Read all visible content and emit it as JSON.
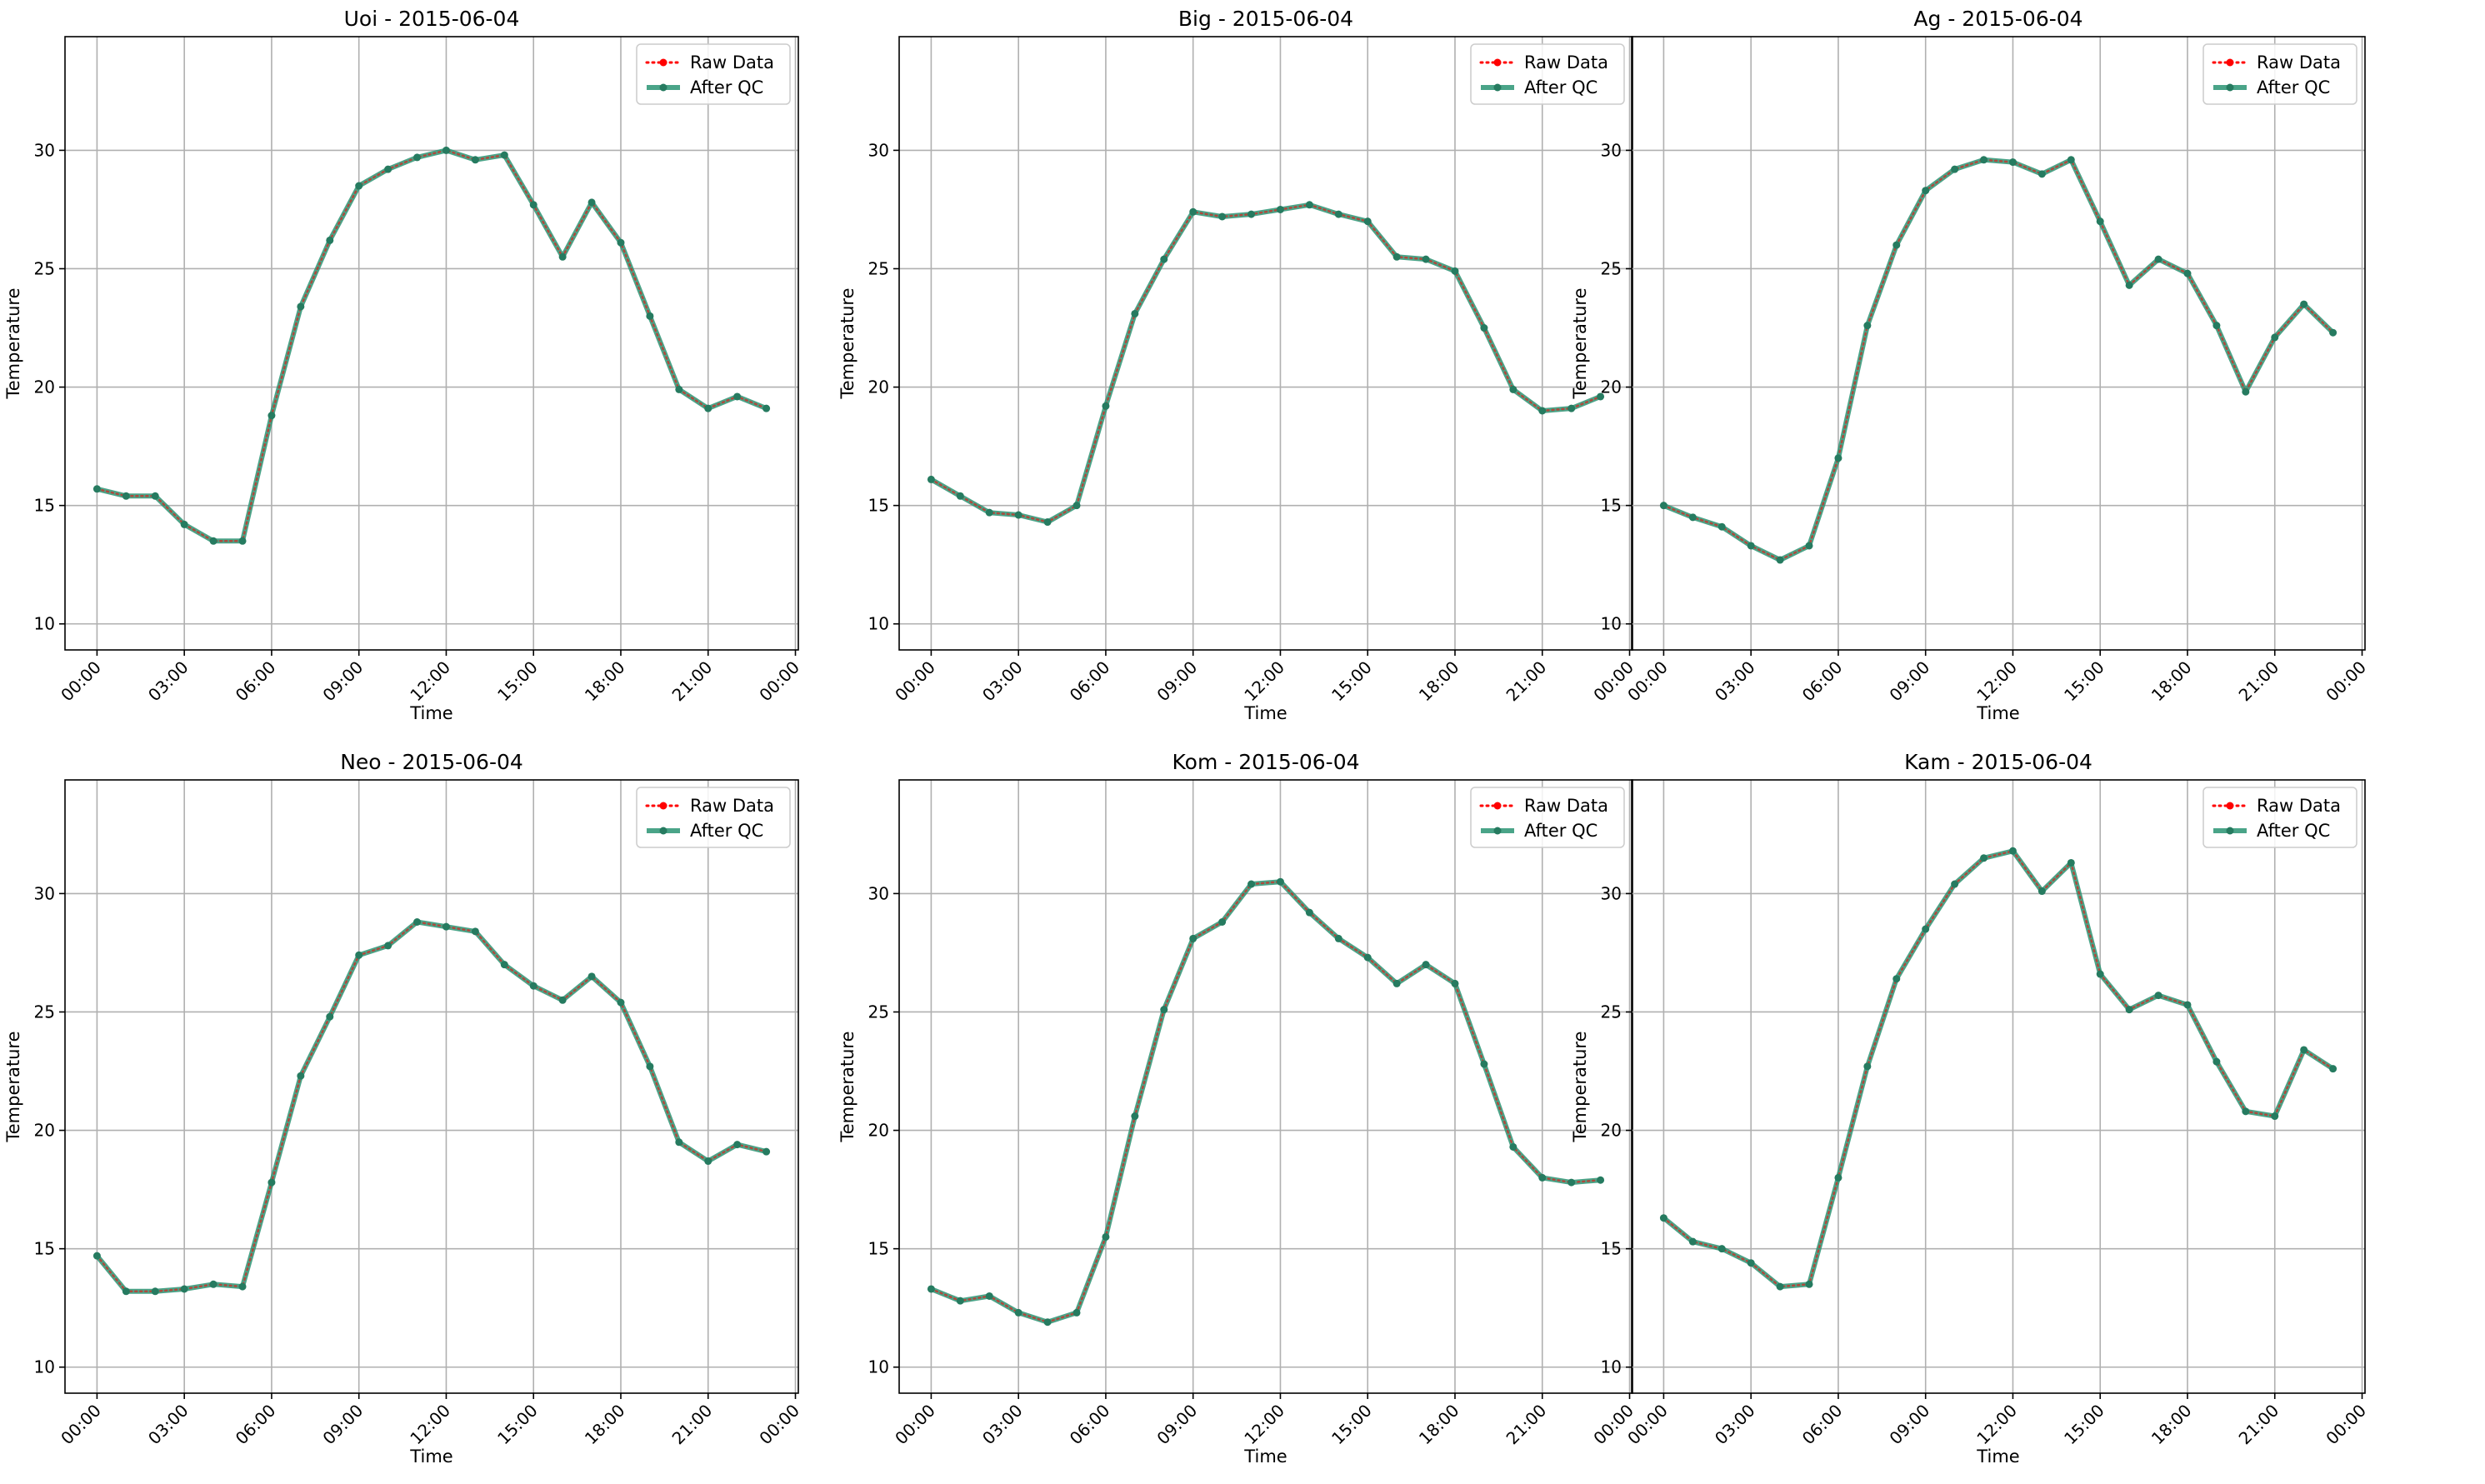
{
  "figure": {
    "background": "#ffffff",
    "raw_color": "#ff0000",
    "qc_color": "#2a9473",
    "qc_marker_color": "#267b60"
  },
  "chart_data": [
    {
      "type": "line",
      "title": "Uoi - 2015-06-04",
      "xlabel": "Time",
      "ylabel": "Temperature",
      "x": [
        0,
        1,
        2,
        3,
        4,
        5,
        6,
        7,
        8,
        9,
        10,
        11,
        12,
        13,
        14,
        15,
        16,
        17,
        18,
        19,
        20,
        21,
        22,
        23
      ],
      "xlim": [
        -1.1,
        24.1
      ],
      "xticks": [
        0,
        3,
        6,
        9,
        12,
        15,
        18,
        21,
        24
      ],
      "xticklabels": [
        "00:00",
        "03:00",
        "06:00",
        "09:00",
        "12:00",
        "15:00",
        "18:00",
        "21:00",
        "00:00"
      ],
      "ylim": [
        8.9,
        34.8
      ],
      "yticks": [
        10,
        15,
        20,
        25,
        30
      ],
      "grid": true,
      "legend": "upper right",
      "series": [
        {
          "name": "Raw Data",
          "values": [
            15.7,
            15.4,
            15.4,
            14.2,
            13.5,
            13.5,
            18.8,
            23.4,
            26.2,
            28.5,
            29.2,
            29.7,
            30.0,
            29.6,
            29.8,
            27.7,
            25.5,
            27.8,
            26.1,
            23.0,
            19.9,
            19.1,
            19.6,
            19.1
          ]
        },
        {
          "name": "After QC",
          "values": [
            15.7,
            15.4,
            15.4,
            14.2,
            13.5,
            13.5,
            18.8,
            23.4,
            26.2,
            28.5,
            29.2,
            29.7,
            30.0,
            29.6,
            29.8,
            27.7,
            25.5,
            27.8,
            26.1,
            23.0,
            19.9,
            19.1,
            19.6,
            19.1
          ]
        }
      ]
    },
    {
      "type": "line",
      "title": "Big - 2015-06-04",
      "xlabel": "Time",
      "ylabel": "Temperature",
      "x": [
        0,
        1,
        2,
        3,
        4,
        5,
        6,
        7,
        8,
        9,
        10,
        11,
        12,
        13,
        14,
        15,
        16,
        17,
        18,
        19,
        20,
        21,
        22,
        23
      ],
      "xlim": [
        -1.1,
        24.1
      ],
      "xticks": [
        0,
        3,
        6,
        9,
        12,
        15,
        18,
        21,
        24
      ],
      "xticklabels": [
        "00:00",
        "03:00",
        "06:00",
        "09:00",
        "12:00",
        "15:00",
        "18:00",
        "21:00",
        "00:00"
      ],
      "ylim": [
        8.9,
        34.8
      ],
      "yticks": [
        10,
        15,
        20,
        25,
        30
      ],
      "grid": true,
      "legend": "upper right",
      "series": [
        {
          "name": "Raw Data",
          "values": [
            16.1,
            15.4,
            14.7,
            14.6,
            14.3,
            15.0,
            19.2,
            23.1,
            25.4,
            27.4,
            27.2,
            27.3,
            27.5,
            27.7,
            27.3,
            27.0,
            25.5,
            25.4,
            24.9,
            22.5,
            19.9,
            19.0,
            19.1,
            19.6
          ]
        },
        {
          "name": "After QC",
          "values": [
            16.1,
            15.4,
            14.7,
            14.6,
            14.3,
            15.0,
            19.2,
            23.1,
            25.4,
            27.4,
            27.2,
            27.3,
            27.5,
            27.7,
            27.3,
            27.0,
            25.5,
            25.4,
            24.9,
            22.5,
            19.9,
            19.0,
            19.1,
            19.6
          ]
        }
      ]
    },
    {
      "type": "line",
      "title": "Ag - 2015-06-04",
      "xlabel": "Time",
      "ylabel": "Temperature",
      "x": [
        0,
        1,
        2,
        3,
        4,
        5,
        6,
        7,
        8,
        9,
        10,
        11,
        12,
        13,
        14,
        15,
        16,
        17,
        18,
        19,
        20,
        21,
        22,
        23
      ],
      "xlim": [
        -1.1,
        24.1
      ],
      "xticks": [
        0,
        3,
        6,
        9,
        12,
        15,
        18,
        21,
        24
      ],
      "xticklabels": [
        "00:00",
        "03:00",
        "06:00",
        "09:00",
        "12:00",
        "15:00",
        "18:00",
        "21:00",
        "00:00"
      ],
      "ylim": [
        8.9,
        34.8
      ],
      "yticks": [
        10,
        15,
        20,
        25,
        30
      ],
      "grid": true,
      "legend": "upper right",
      "series": [
        {
          "name": "Raw Data",
          "values": [
            15.0,
            14.5,
            14.1,
            13.3,
            12.7,
            13.3,
            17.0,
            22.6,
            26.0,
            28.3,
            29.2,
            29.6,
            29.5,
            29.0,
            29.6,
            27.0,
            24.3,
            25.4,
            24.8,
            22.6,
            19.8,
            22.1,
            23.5,
            22.3
          ]
        },
        {
          "name": "After QC",
          "values": [
            15.0,
            14.5,
            14.1,
            13.3,
            12.7,
            13.3,
            17.0,
            22.6,
            26.0,
            28.3,
            29.2,
            29.6,
            29.5,
            29.0,
            29.6,
            27.0,
            24.3,
            25.4,
            24.8,
            22.6,
            19.8,
            22.1,
            23.5,
            22.3
          ]
        }
      ]
    },
    {
      "type": "line",
      "title": "Neo - 2015-06-04",
      "xlabel": "Time",
      "ylabel": "Temperature",
      "x": [
        0,
        1,
        2,
        3,
        4,
        5,
        6,
        7,
        8,
        9,
        10,
        11,
        12,
        13,
        14,
        15,
        16,
        17,
        18,
        19,
        20,
        21,
        22,
        23
      ],
      "xlim": [
        -1.1,
        24.1
      ],
      "xticks": [
        0,
        3,
        6,
        9,
        12,
        15,
        18,
        21,
        24
      ],
      "xticklabels": [
        "00:00",
        "03:00",
        "06:00",
        "09:00",
        "12:00",
        "15:00",
        "18:00",
        "21:00",
        "00:00"
      ],
      "ylim": [
        8.9,
        34.8
      ],
      "yticks": [
        10,
        15,
        20,
        25,
        30
      ],
      "grid": true,
      "legend": "upper right",
      "series": [
        {
          "name": "Raw Data",
          "values": [
            14.7,
            13.2,
            13.2,
            13.3,
            13.5,
            13.4,
            17.8,
            22.3,
            24.8,
            27.4,
            27.8,
            28.8,
            28.6,
            28.4,
            27.0,
            26.1,
            25.5,
            26.5,
            25.4,
            22.7,
            19.5,
            18.7,
            19.4,
            19.1
          ]
        },
        {
          "name": "After QC",
          "values": [
            14.7,
            13.2,
            13.2,
            13.3,
            13.5,
            13.4,
            17.8,
            22.3,
            24.8,
            27.4,
            27.8,
            28.8,
            28.6,
            28.4,
            27.0,
            26.1,
            25.5,
            26.5,
            25.4,
            22.7,
            19.5,
            18.7,
            19.4,
            19.1
          ]
        }
      ]
    },
    {
      "type": "line",
      "title": "Kom - 2015-06-04",
      "xlabel": "Time",
      "ylabel": "Temperature",
      "x": [
        0,
        1,
        2,
        3,
        4,
        5,
        6,
        7,
        8,
        9,
        10,
        11,
        12,
        13,
        14,
        15,
        16,
        17,
        18,
        19,
        20,
        21,
        22,
        23
      ],
      "xlim": [
        -1.1,
        24.1
      ],
      "xticks": [
        0,
        3,
        6,
        9,
        12,
        15,
        18,
        21,
        24
      ],
      "xticklabels": [
        "00:00",
        "03:00",
        "06:00",
        "09:00",
        "12:00",
        "15:00",
        "18:00",
        "21:00",
        "00:00"
      ],
      "ylim": [
        8.9,
        34.8
      ],
      "yticks": [
        10,
        15,
        20,
        25,
        30
      ],
      "grid": true,
      "legend": "upper right",
      "series": [
        {
          "name": "Raw Data",
          "values": [
            13.3,
            12.8,
            13.0,
            12.3,
            11.9,
            12.3,
            15.5,
            20.6,
            25.1,
            28.1,
            28.8,
            30.4,
            30.5,
            29.2,
            28.1,
            27.3,
            26.2,
            27.0,
            26.2,
            22.8,
            19.3,
            18.0,
            17.8,
            17.9
          ]
        },
        {
          "name": "After QC",
          "values": [
            13.3,
            12.8,
            13.0,
            12.3,
            11.9,
            12.3,
            15.5,
            20.6,
            25.1,
            28.1,
            28.8,
            30.4,
            30.5,
            29.2,
            28.1,
            27.3,
            26.2,
            27.0,
            26.2,
            22.8,
            19.3,
            18.0,
            17.8,
            17.9
          ]
        }
      ]
    },
    {
      "type": "line",
      "title": "Kam - 2015-06-04",
      "xlabel": "Time",
      "ylabel": "Temperature",
      "x": [
        0,
        1,
        2,
        3,
        4,
        5,
        6,
        7,
        8,
        9,
        10,
        11,
        12,
        13,
        14,
        15,
        16,
        17,
        18,
        19,
        20,
        21,
        22,
        23
      ],
      "xlim": [
        -1.1,
        24.1
      ],
      "xticks": [
        0,
        3,
        6,
        9,
        12,
        15,
        18,
        21,
        24
      ],
      "xticklabels": [
        "00:00",
        "03:00",
        "06:00",
        "09:00",
        "12:00",
        "15:00",
        "18:00",
        "21:00",
        "00:00"
      ],
      "ylim": [
        8.9,
        34.8
      ],
      "yticks": [
        10,
        15,
        20,
        25,
        30
      ],
      "grid": true,
      "legend": "upper right",
      "series": [
        {
          "name": "Raw Data",
          "values": [
            16.3,
            15.3,
            15.0,
            14.4,
            13.4,
            13.5,
            18.0,
            22.7,
            26.4,
            28.5,
            30.4,
            31.5,
            31.8,
            30.1,
            31.3,
            26.6,
            25.1,
            25.7,
            25.3,
            22.9,
            20.8,
            20.6,
            23.4,
            22.6
          ]
        },
        {
          "name": "After QC",
          "values": [
            16.3,
            15.3,
            15.0,
            14.4,
            13.4,
            13.5,
            18.0,
            22.7,
            26.4,
            28.5,
            30.4,
            31.5,
            31.8,
            30.1,
            31.3,
            26.6,
            25.1,
            25.7,
            25.3,
            22.9,
            20.8,
            20.6,
            23.4,
            22.6
          ]
        }
      ]
    }
  ]
}
